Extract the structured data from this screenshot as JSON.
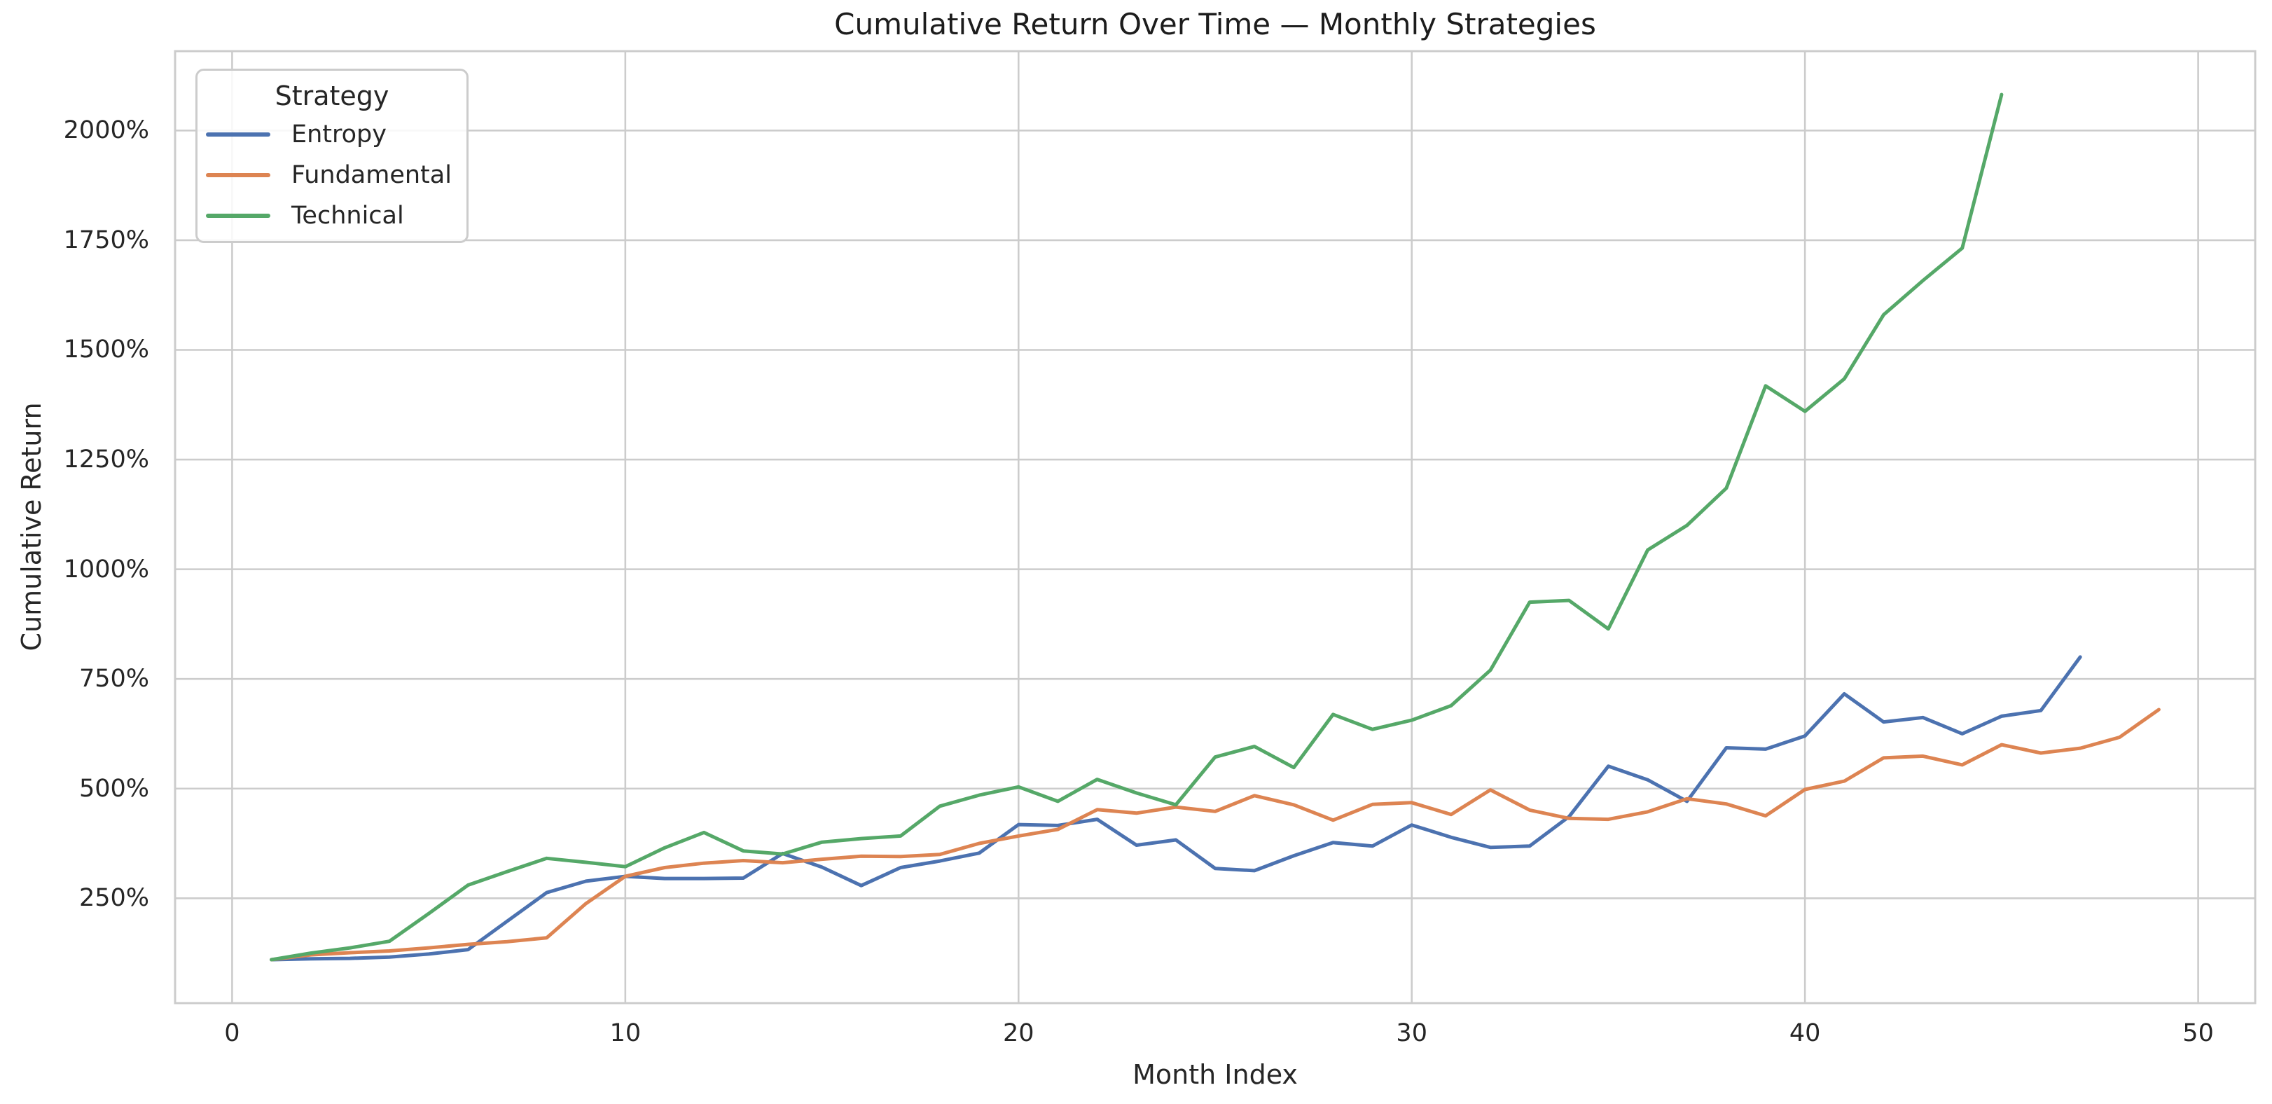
{
  "chart_data": {
    "type": "line",
    "title": "Cumulative Return Over Time — Monthly Strategies",
    "xlabel": "Month Index",
    "ylabel": "Cumulative Return",
    "units": "percent",
    "grid": true,
    "background_color": "#ffffff",
    "grid_color": "#cccccc",
    "text_color": "#262626",
    "xlim": [
      -1.45,
      51.45
    ],
    "ylim": [
      11,
      2181
    ],
    "x_ticks": [
      0,
      10,
      20,
      30,
      40,
      50
    ],
    "y_ticks": [
      {
        "value": 250,
        "label": "250%"
      },
      {
        "value": 500,
        "label": "500%"
      },
      {
        "value": 750,
        "label": "750%"
      },
      {
        "value": 1000,
        "label": "1000%"
      },
      {
        "value": 1250,
        "label": "1250%"
      },
      {
        "value": 1500,
        "label": "1500%"
      },
      {
        "value": 1750,
        "label": "1750%"
      },
      {
        "value": 2000,
        "label": "2000%"
      }
    ],
    "legend": {
      "title": "Strategy",
      "position": "upper left",
      "entries": [
        {
          "name": "Entropy",
          "color": "#4C72B0"
        },
        {
          "name": "Fundamental",
          "color": "#DD8452"
        },
        {
          "name": "Technical",
          "color": "#55A868"
        }
      ]
    },
    "series": [
      {
        "name": "Entropy",
        "color": "#4C72B0",
        "x_start": 1,
        "values": [
          110,
          112,
          113,
          116,
          123,
          133,
          198,
          263,
          289,
          300,
          295,
          295,
          296,
          352,
          321,
          279,
          320,
          335,
          353,
          418,
          416,
          430,
          371,
          383,
          318,
          313,
          347,
          377,
          369,
          417,
          389,
          366,
          369,
          436,
          551,
          520,
          471,
          593,
          590,
          620,
          716,
          652,
          662,
          625,
          665,
          678,
          800
        ]
      },
      {
        "name": "Fundamental",
        "color": "#DD8452",
        "x_start": 1,
        "values": [
          110,
          121,
          126,
          130,
          137,
          145,
          151,
          160,
          238,
          300,
          320,
          330,
          336,
          331,
          339,
          346,
          345,
          350,
          375,
          392,
          407,
          452,
          444,
          458,
          448,
          484,
          463,
          428,
          464,
          468,
          441,
          497,
          451,
          432,
          430,
          447,
          477,
          465,
          438,
          498,
          517,
          570,
          574,
          554,
          600,
          581,
          592,
          617,
          680
        ]
      },
      {
        "name": "Technical",
        "color": "#55A868",
        "x_start": 1,
        "values": [
          110,
          125,
          137,
          152,
          215,
          280,
          311,
          341,
          332,
          322,
          365,
          400,
          358,
          351,
          378,
          386,
          392,
          460,
          485,
          504,
          471,
          521,
          490,
          463,
          572,
          596,
          548,
          669,
          635,
          656,
          689,
          770,
          925,
          929,
          864,
          1044,
          1100,
          1185,
          1418,
          1360,
          1434,
          1580,
          1658,
          1732,
          2082
        ]
      }
    ]
  }
}
